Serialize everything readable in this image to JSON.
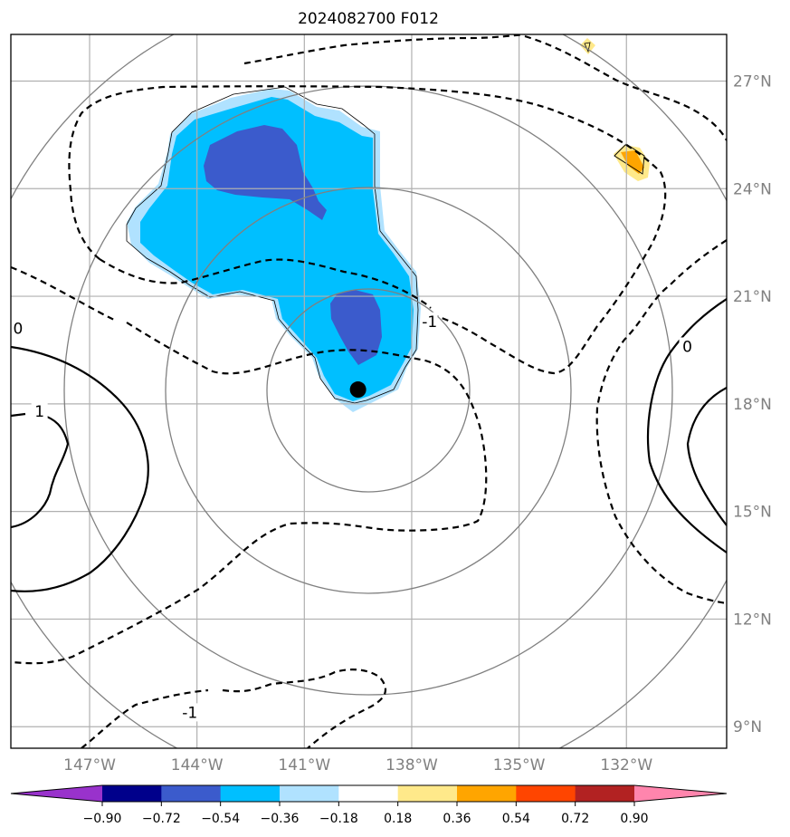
{
  "title": "2024082700 F012",
  "chart_data": {
    "type": "contour-map",
    "title": "2024082700 F012",
    "map": {
      "lon_range": [
        -149.2,
        -129.2
      ],
      "lat_range": [
        8.4,
        28.3
      ],
      "lon_ticks": [
        -147,
        -144,
        -141,
        -138,
        -135,
        -132
      ],
      "lon_tick_labels": [
        "147°W",
        "144°W",
        "141°W",
        "138°W",
        "135°W",
        "132°W"
      ],
      "lat_ticks": [
        9,
        12,
        15,
        18,
        21,
        24,
        27
      ],
      "lat_tick_labels": [
        "9°N",
        "12°N",
        "15°N",
        "18°N",
        "21°N",
        "24°N",
        "27°N"
      ],
      "grid": true,
      "storm_center": {
        "lon": -139.5,
        "lat": 18.4
      },
      "range_rings": "concentric circles around storm center"
    },
    "contour_labels": [
      {
        "text": "0",
        "lon": -149.0,
        "lat": 20.1
      },
      {
        "text": "-1",
        "lon": -137.5,
        "lat": 20.3
      },
      {
        "text": "0",
        "lon": -130.3,
        "lat": 19.6
      },
      {
        "text": "1",
        "lon": -148.4,
        "lat": 17.8
      },
      {
        "text": "-1",
        "lon": -144.2,
        "lat": 9.4
      }
    ],
    "colorbar": {
      "orientation": "horizontal",
      "extend": "both",
      "levels": [
        -0.9,
        -0.72,
        -0.54,
        -0.36,
        -0.18,
        0.18,
        0.36,
        0.54,
        0.72,
        0.9
      ],
      "tick_labels": [
        "−0.90",
        "−0.72",
        "−0.54",
        "−0.36",
        "−0.18",
        "0.18",
        "0.36",
        "0.54",
        "0.72",
        "0.90"
      ],
      "colors": [
        "#9932cc",
        "#00008b",
        "#3b5bcc",
        "#00bfff",
        "#b0e2ff",
        "#ffffff",
        "#ffe98a",
        "#ffa500",
        "#ff4500",
        "#b22222",
        "#ff85ad"
      ]
    }
  }
}
